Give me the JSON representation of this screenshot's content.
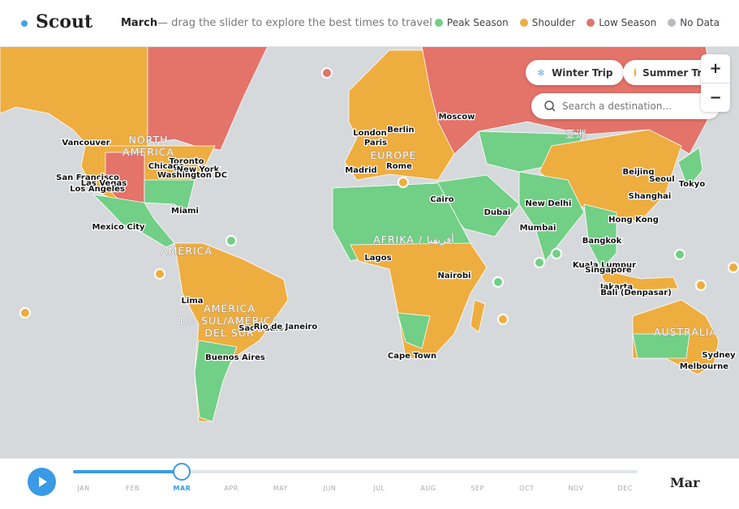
{
  "header": {
    "logo": "Scout",
    "month": "March",
    "hint": "— drag the slider to explore the best times to travel"
  },
  "legend": [
    {
      "label": "Peak Season",
      "color": "#72cf86"
    },
    {
      "label": "Shoulder",
      "color": "#eead3f"
    },
    {
      "label": "Low Season",
      "color": "#e4736a"
    },
    {
      "label": "No Data",
      "color": "#b8bcc2"
    }
  ],
  "trips": [
    "Winter Trip",
    "Summer Trip"
  ],
  "search": {
    "placeholder": "Search a destination..."
  },
  "zoom": [
    "+",
    "−"
  ],
  "regions": [
    [
      "NORTH",
      "AMERICA"
    ],
    [
      "AMÉRICA"
    ],
    [
      "AMÉRICA",
      "DO SUL/AMÉRICA",
      "DEL SUR"
    ],
    [
      "EUROPE"
    ],
    [
      "AFRIKA / أفريقيا"
    ],
    [
      "亚洲"
    ],
    [
      "AUSTRALIA"
    ]
  ],
  "cities": [
    "Vancouver",
    "Toronto",
    "Chicago",
    "New York",
    "Washington DC",
    "San Francisco",
    "Las Vegas",
    "Los Angeles",
    "Miami",
    "Mexico City",
    "Lima",
    "Sao Paulo",
    "Rio de Janeiro",
    "Buenos Aires",
    "London",
    "Paris",
    "Berlin",
    "Madrid",
    "Rome",
    "Moscow",
    "Cairo",
    "Lagos",
    "Nairobi",
    "Cape Town",
    "Dubai",
    "New Delhi",
    "Mumbai",
    "Bangkok",
    "Kuala Lumpur",
    "Singapore",
    "Jakarta",
    "Bali (Denpasar)",
    "Hong Kong",
    "Shanghai",
    "Beijing",
    "Seoul",
    "Tokyo",
    "Sydney",
    "Melbourne"
  ],
  "slider": {
    "months": [
      "JAN",
      "FEB",
      "MAR",
      "APR",
      "MAY",
      "JUN",
      "JUL",
      "AUG",
      "SEP",
      "OCT",
      "NOV",
      "DEC"
    ],
    "selected": 2,
    "current": "Mar"
  }
}
